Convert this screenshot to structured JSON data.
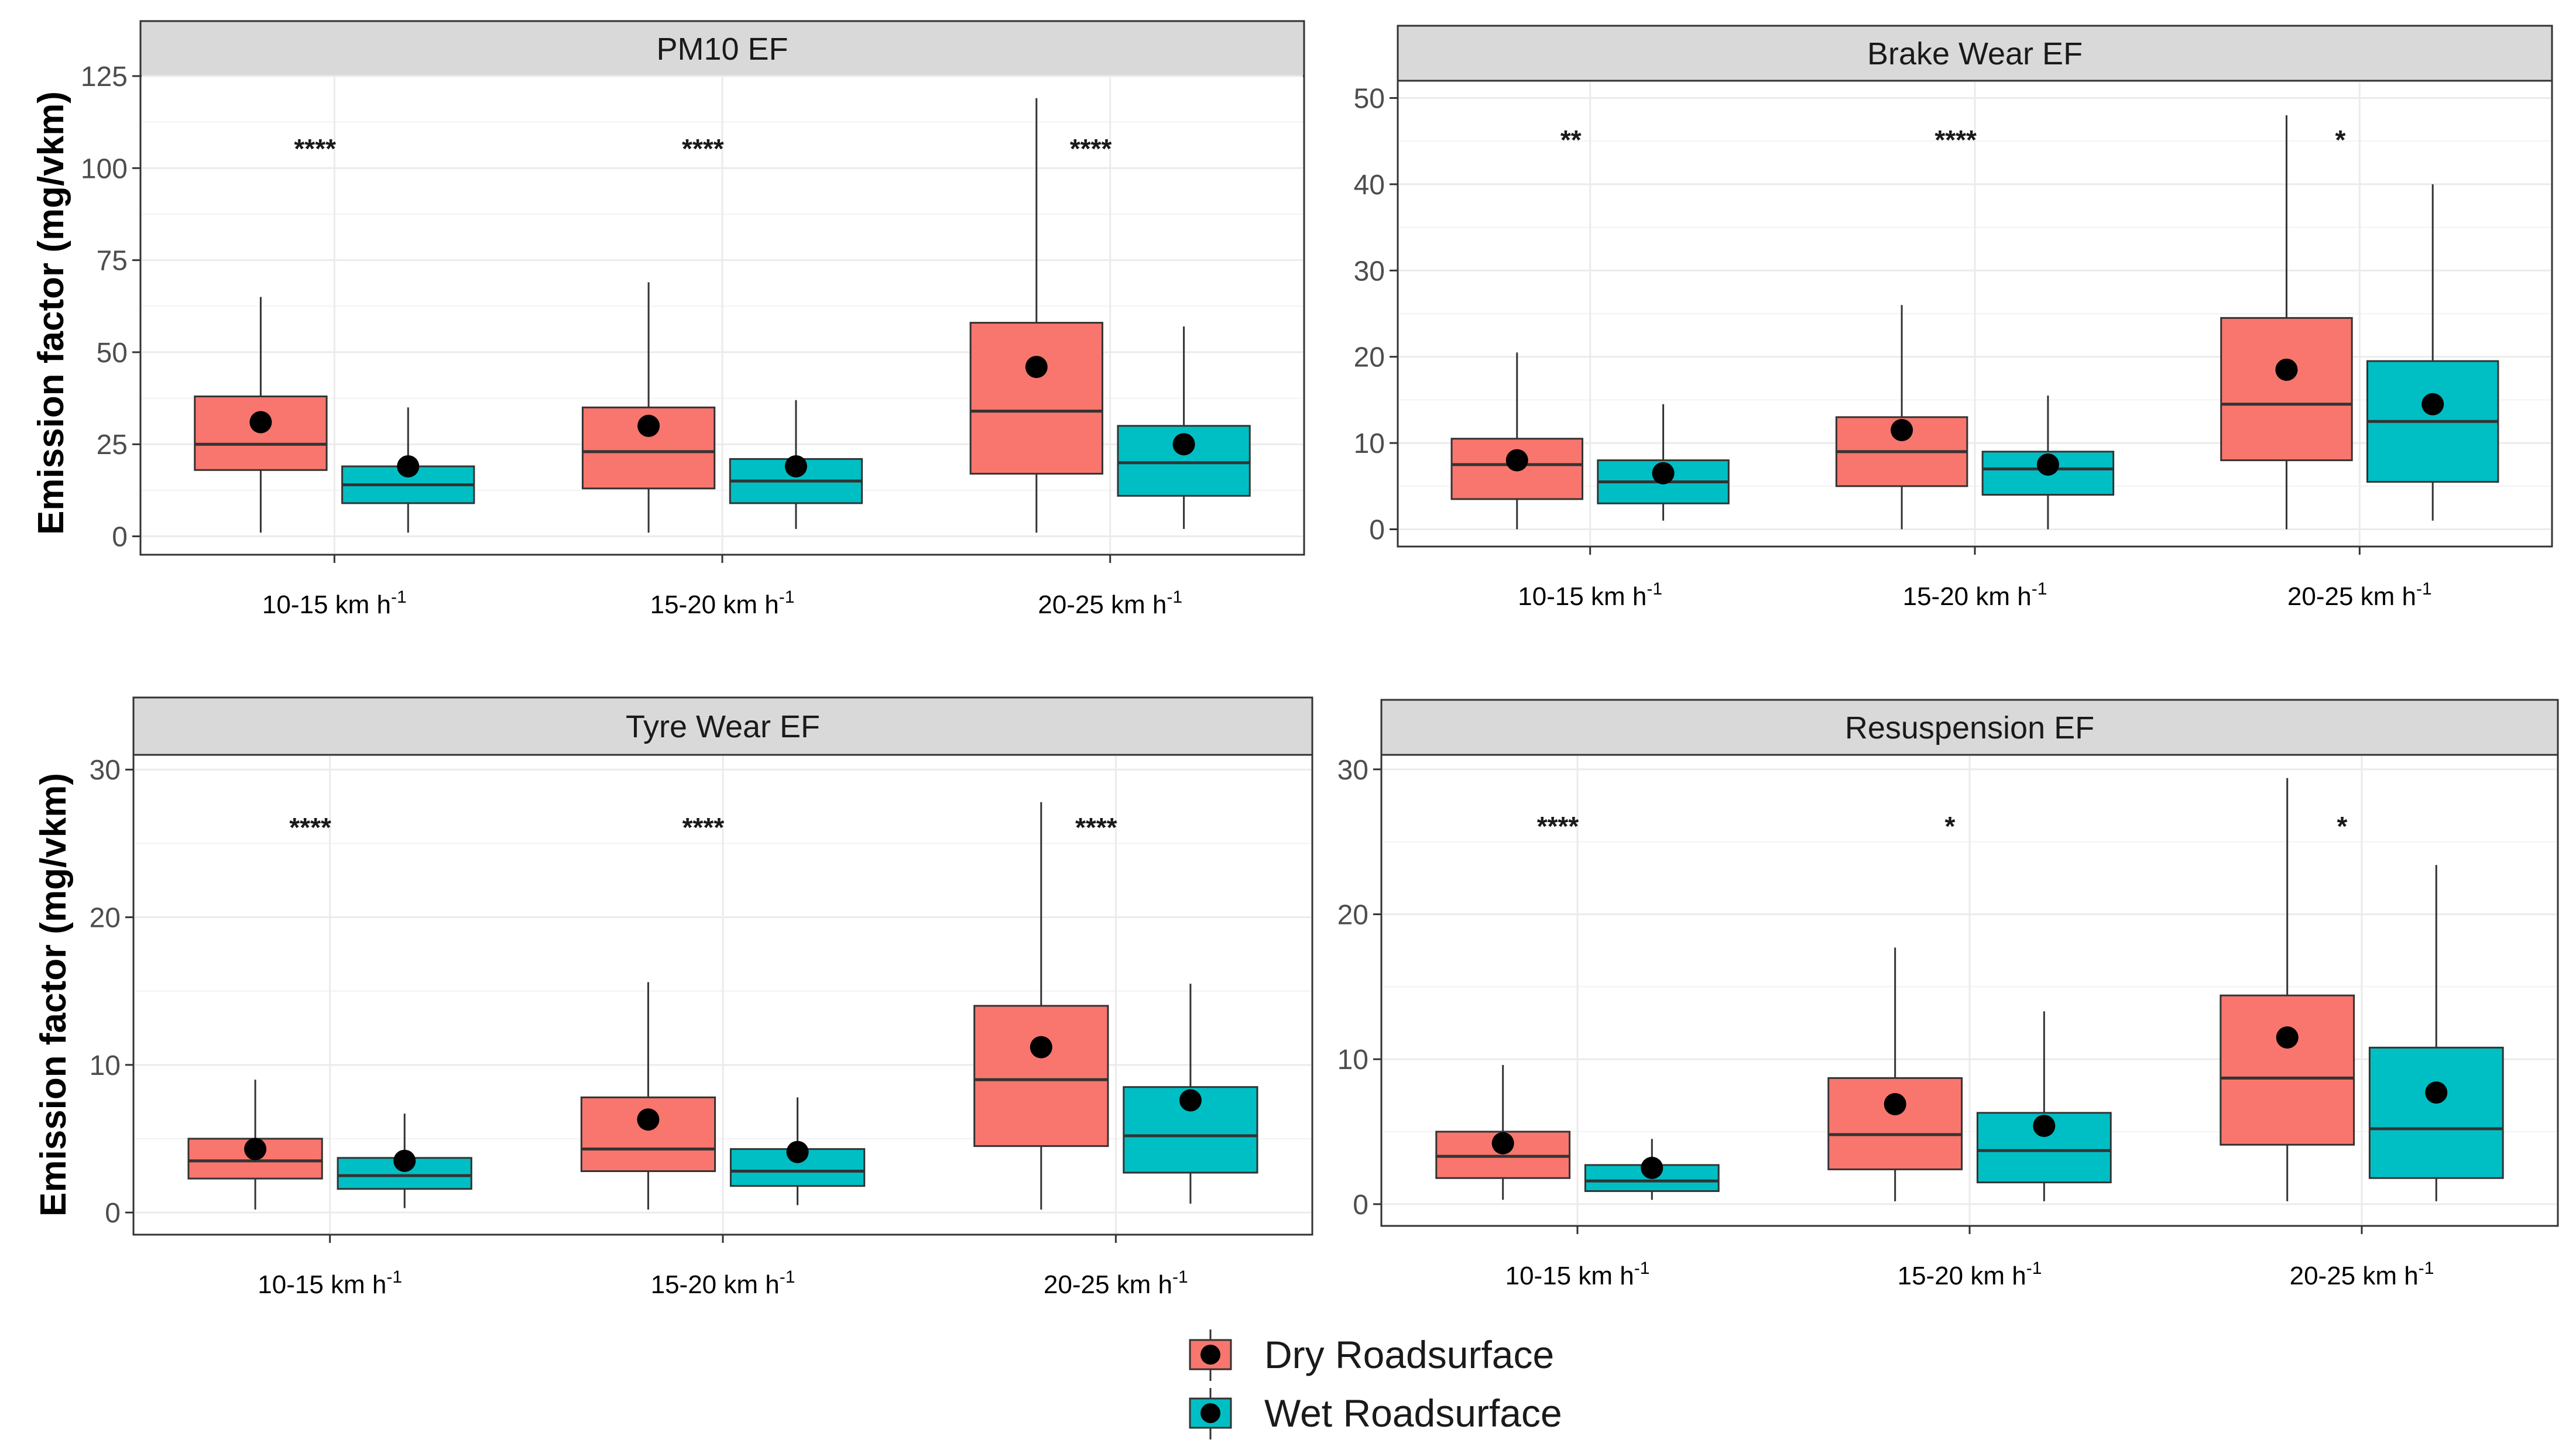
{
  "colors": {
    "dry": "#F8766D",
    "wet": "#00BFC4",
    "strip": "#d9d9d9"
  },
  "y_axis_label": "Emission factor (mg/vkm)",
  "legend": {
    "items": [
      {
        "name": "Dry Roadsurface",
        "color": "#F8766D"
      },
      {
        "name": "Wet Roadsurface",
        "color": "#00BFC4"
      }
    ]
  },
  "chart_data": [
    {
      "type": "box",
      "title": "PM10 EF",
      "ylim": [
        -5,
        125
      ],
      "yticks": [
        0,
        25,
        50,
        75,
        100,
        125
      ],
      "categories": [
        "10-15 km h",
        "15-20 km h",
        "20-25 km h"
      ],
      "category_superscript": "-1",
      "significance": [
        "****",
        "****",
        "****"
      ],
      "significance_y": 105,
      "series": [
        {
          "name": "Dry Roadsurface",
          "boxes": [
            {
              "min": 1,
              "q1": 18,
              "median": 25,
              "q3": 38,
              "max": 65,
              "mean": 31
            },
            {
              "min": 1,
              "q1": 13,
              "median": 23,
              "q3": 35,
              "max": 69,
              "mean": 30
            },
            {
              "min": 1,
              "q1": 17,
              "median": 34,
              "q3": 58,
              "max": 119,
              "mean": 46
            }
          ]
        },
        {
          "name": "Wet Roadsurface",
          "boxes": [
            {
              "min": 1,
              "q1": 9,
              "median": 14,
              "q3": 19,
              "max": 35,
              "mean": 19
            },
            {
              "min": 2,
              "q1": 9,
              "median": 15,
              "q3": 21,
              "max": 37,
              "mean": 19
            },
            {
              "min": 2,
              "q1": 11,
              "median": 20,
              "q3": 30,
              "max": 57,
              "mean": 25
            }
          ]
        }
      ]
    },
    {
      "type": "box",
      "title": "Brake Wear EF",
      "ylim": [
        -2,
        52
      ],
      "yticks": [
        0,
        10,
        20,
        30,
        40,
        50
      ],
      "categories": [
        "10-15 km h",
        "15-20 km h",
        "20-25 km h"
      ],
      "category_superscript": "-1",
      "significance": [
        "**",
        "****",
        "*"
      ],
      "significance_y": 45,
      "series": [
        {
          "name": "Dry Roadsurface",
          "boxes": [
            {
              "min": 0,
              "q1": 3.5,
              "median": 7.5,
              "q3": 10.5,
              "max": 20.5,
              "mean": 8
            },
            {
              "min": 0,
              "q1": 5,
              "median": 9,
              "q3": 13,
              "max": 26,
              "mean": 11.5
            },
            {
              "min": 0,
              "q1": 8,
              "median": 14.5,
              "q3": 24.5,
              "max": 48,
              "mean": 18.5
            }
          ]
        },
        {
          "name": "Wet Roadsurface",
          "boxes": [
            {
              "min": 1,
              "q1": 3,
              "median": 5.5,
              "q3": 8,
              "max": 14.5,
              "mean": 6.5
            },
            {
              "min": 0,
              "q1": 4,
              "median": 7,
              "q3": 9,
              "max": 15.5,
              "mean": 7.5
            },
            {
              "min": 1,
              "q1": 5.5,
              "median": 12.5,
              "q3": 19.5,
              "max": 40,
              "mean": 14.5
            }
          ]
        }
      ]
    },
    {
      "type": "box",
      "title": "Tyre Wear EF",
      "ylim": [
        -1.5,
        31
      ],
      "yticks": [
        0,
        10,
        20,
        30
      ],
      "categories": [
        "10-15 km h",
        "15-20 km h",
        "20-25 km h"
      ],
      "category_superscript": "-1",
      "significance": [
        "****",
        "****",
        "****"
      ],
      "significance_y": 26,
      "series": [
        {
          "name": "Dry Roadsurface",
          "boxes": [
            {
              "min": 0.2,
              "q1": 2.3,
              "median": 3.5,
              "q3": 5,
              "max": 9,
              "mean": 4.3
            },
            {
              "min": 0.2,
              "q1": 2.8,
              "median": 4.3,
              "q3": 7.8,
              "max": 15.6,
              "mean": 6.3
            },
            {
              "min": 0.2,
              "q1": 4.5,
              "median": 9,
              "q3": 14,
              "max": 27.8,
              "mean": 11.2
            }
          ]
        },
        {
          "name": "Wet Roadsurface",
          "boxes": [
            {
              "min": 0.3,
              "q1": 1.6,
              "median": 2.5,
              "q3": 3.7,
              "max": 6.7,
              "mean": 3.5
            },
            {
              "min": 0.5,
              "q1": 1.8,
              "median": 2.8,
              "q3": 4.3,
              "max": 7.8,
              "mean": 4.1
            },
            {
              "min": 0.6,
              "q1": 2.7,
              "median": 5.2,
              "q3": 8.5,
              "max": 15.5,
              "mean": 7.6
            }
          ]
        }
      ]
    },
    {
      "type": "box",
      "title": "Resuspension EF",
      "ylim": [
        -1.5,
        31
      ],
      "yticks": [
        0,
        10,
        20,
        30
      ],
      "categories": [
        "10-15 km h",
        "15-20 km h",
        "20-25 km h"
      ],
      "category_superscript": "-1",
      "significance": [
        "****",
        "*",
        "*"
      ],
      "significance_y": 26,
      "series": [
        {
          "name": "Dry Roadsurface",
          "boxes": [
            {
              "min": 0.3,
              "q1": 1.8,
              "median": 3.3,
              "q3": 5,
              "max": 9.6,
              "mean": 4.2
            },
            {
              "min": 0.2,
              "q1": 2.4,
              "median": 4.8,
              "q3": 8.7,
              "max": 17.7,
              "mean": 6.9
            },
            {
              "min": 0.2,
              "q1": 4.1,
              "median": 8.7,
              "q3": 14.4,
              "max": 29.4,
              "mean": 11.5
            }
          ]
        },
        {
          "name": "Wet Roadsurface",
          "boxes": [
            {
              "min": 0.3,
              "q1": 0.9,
              "median": 1.6,
              "q3": 2.7,
              "max": 4.5,
              "mean": 2.5
            },
            {
              "min": 0.2,
              "q1": 1.5,
              "median": 3.7,
              "q3": 6.3,
              "max": 13.3,
              "mean": 5.4
            },
            {
              "min": 0.2,
              "q1": 1.8,
              "median": 5.2,
              "q3": 10.8,
              "max": 23.4,
              "mean": 7.7
            }
          ]
        }
      ]
    }
  ]
}
